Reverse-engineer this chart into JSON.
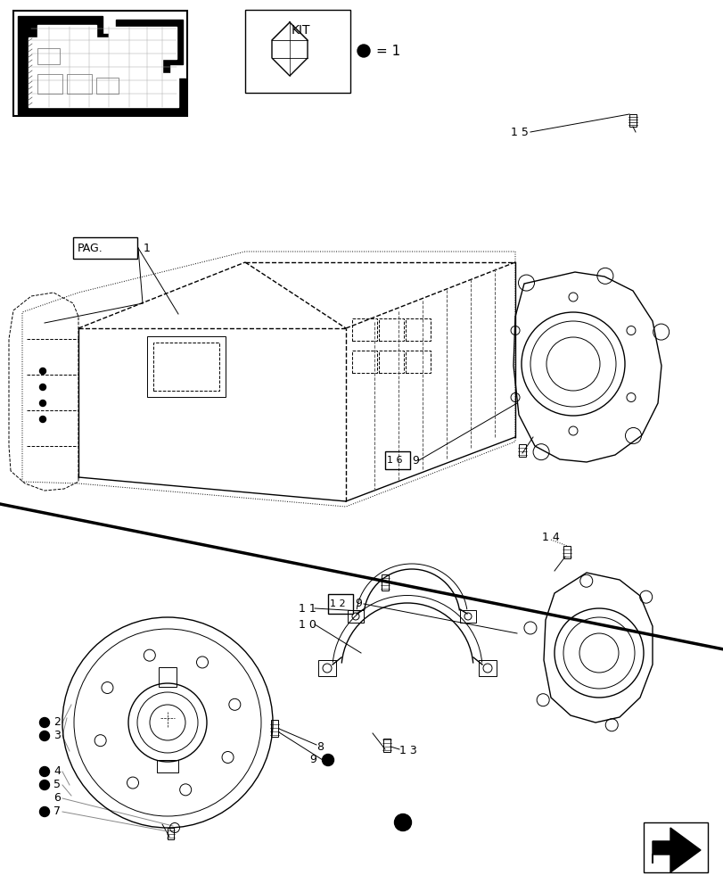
{
  "bg_color": "#ffffff",
  "line_color": "#000000",
  "fig_width": 8.12,
  "fig_height": 10.0,
  "dpi": 100,
  "part_numbers": [
    "1",
    "2",
    "3",
    "4",
    "5",
    "6",
    "7",
    "8",
    "9",
    "10",
    "11",
    "12",
    "13",
    "14",
    "15",
    "16"
  ],
  "bullet_parts": [
    "2",
    "3",
    "4",
    "5",
    "7",
    "9"
  ]
}
